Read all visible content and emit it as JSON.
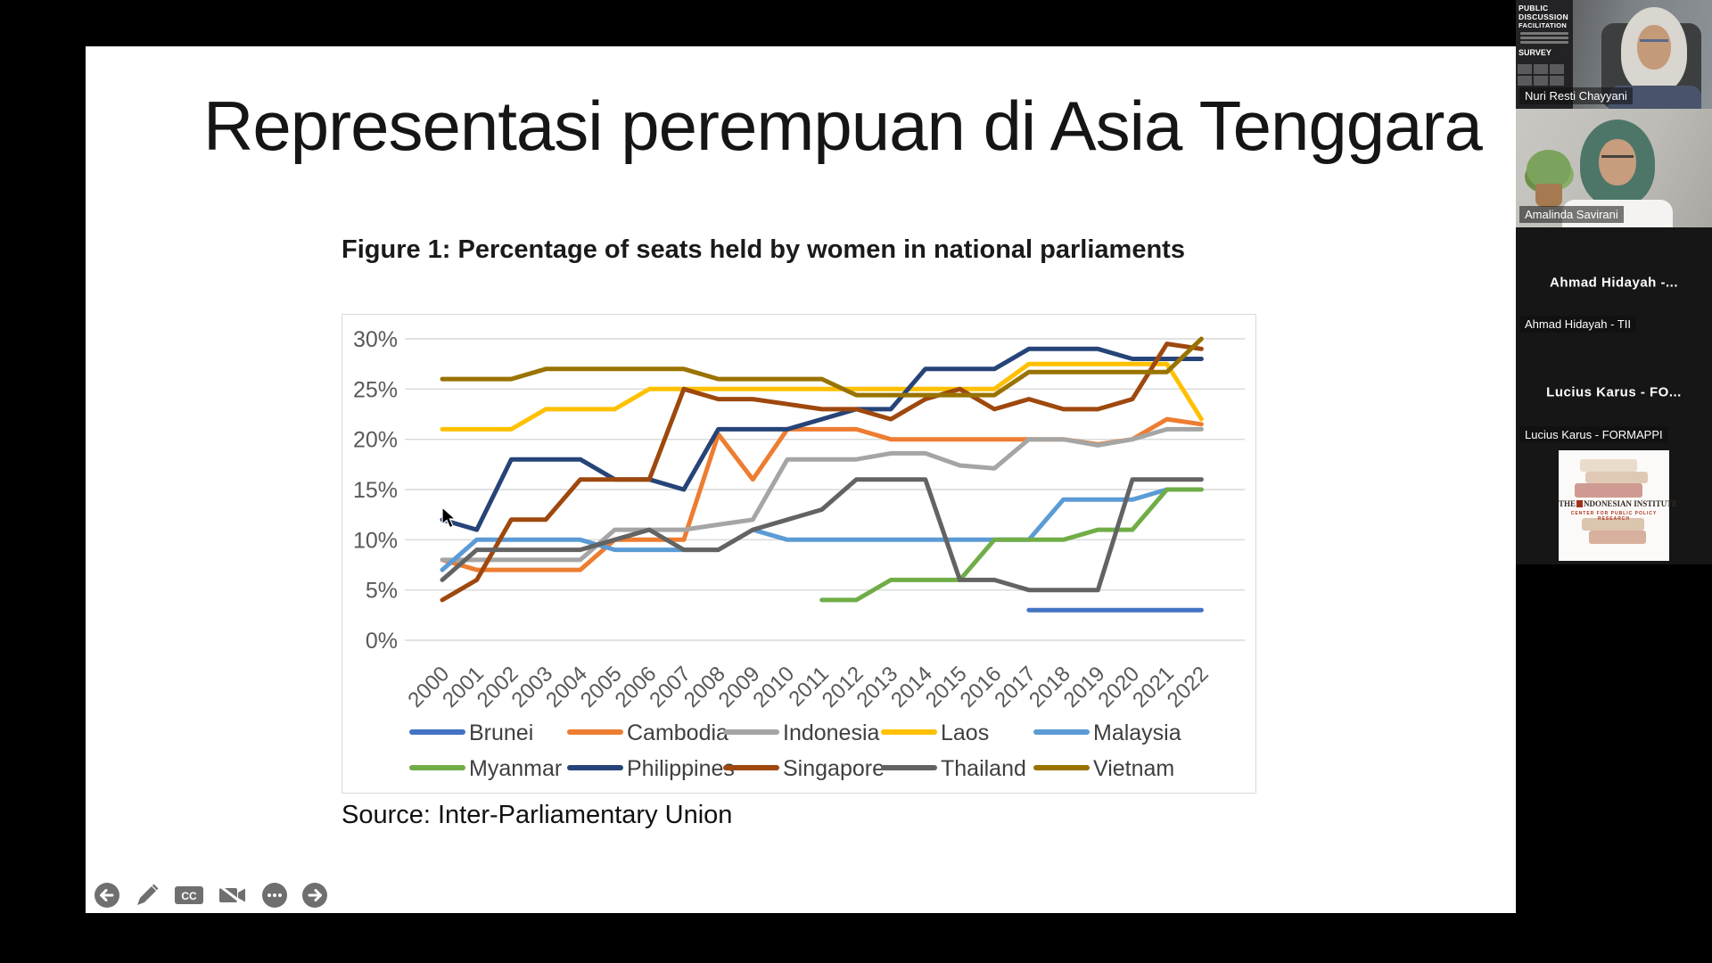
{
  "slide": {
    "title": "Representasi perempuan di Asia Tenggara",
    "source": "Source: Inter-Parliamentary Union"
  },
  "chart_data": {
    "type": "line",
    "title": "Figure 1: Percentage of seats held by women in national parliaments",
    "x": [
      2000,
      2001,
      2002,
      2003,
      2004,
      2005,
      2006,
      2007,
      2008,
      2009,
      2010,
      2011,
      2012,
      2013,
      2014,
      2015,
      2016,
      2017,
      2018,
      2019,
      2020,
      2021,
      2022
    ],
    "ylim": [
      0,
      30
    ],
    "ytick_step": 5,
    "ytick_suffix": "%",
    "grid": "horizontal",
    "legend_position": "bottom",
    "series": [
      {
        "name": "Brunei",
        "color": "#4472C4",
        "values": [
          null,
          null,
          null,
          null,
          null,
          null,
          null,
          null,
          null,
          null,
          null,
          null,
          null,
          null,
          null,
          null,
          null,
          3,
          3,
          3,
          3,
          3,
          3
        ]
      },
      {
        "name": "Cambodia",
        "color": "#ED7D31",
        "values": [
          8,
          7,
          7,
          7,
          7,
          10,
          10,
          10,
          20.5,
          16,
          21,
          21,
          21,
          20,
          20,
          20,
          20,
          20,
          20,
          19.5,
          20,
          22,
          21.5
        ]
      },
      {
        "name": "Indonesia",
        "color": "#A5A5A5",
        "values": [
          8,
          8,
          8,
          8,
          8,
          11,
          11,
          11,
          11.5,
          12,
          18,
          18,
          18,
          18.6,
          18.6,
          17.4,
          17.1,
          20,
          20,
          19.4,
          20,
          21,
          21
        ]
      },
      {
        "name": "Laos",
        "color": "#FFC000",
        "values": [
          21,
          21,
          21,
          23,
          23,
          23,
          25,
          25,
          25,
          25,
          25,
          25,
          25,
          25,
          25,
          25,
          25,
          27.5,
          27.5,
          27.5,
          27.5,
          27.5,
          22
        ]
      },
      {
        "name": "Malaysia",
        "color": "#5B9BD5",
        "values": [
          7,
          10,
          10,
          10,
          10,
          9,
          9,
          9,
          9,
          11,
          10,
          10,
          10,
          10,
          10,
          10,
          10,
          10,
          14,
          14,
          14,
          15,
          15
        ]
      },
      {
        "name": "Myanmar",
        "color": "#70AD47",
        "values": [
          null,
          null,
          null,
          null,
          null,
          null,
          null,
          null,
          null,
          null,
          null,
          4,
          4,
          6,
          6,
          6,
          10,
          10,
          10,
          11,
          11,
          15,
          15
        ]
      },
      {
        "name": "Philippines",
        "color": "#264478",
        "values": [
          12,
          11,
          18,
          18,
          18,
          16,
          16,
          15,
          21,
          21,
          21,
          22,
          23,
          23,
          27,
          27,
          27,
          29,
          29,
          29,
          28,
          28,
          28
        ]
      },
      {
        "name": "Singapore",
        "color": "#9E480E",
        "values": [
          4,
          6,
          12,
          12,
          16,
          16,
          16,
          25,
          24,
          24,
          23.5,
          23,
          23,
          22,
          24,
          25,
          23,
          24,
          23,
          23,
          24,
          29.5,
          29
        ]
      },
      {
        "name": "Thailand",
        "color": "#636363",
        "values": [
          6,
          9,
          9,
          9,
          9,
          10,
          11,
          9,
          9,
          11,
          12,
          13,
          16,
          16,
          16,
          6,
          6,
          5,
          5,
          5,
          16,
          16,
          16
        ]
      },
      {
        "name": "Vietnam",
        "color": "#997300",
        "values": [
          26,
          26,
          26,
          27,
          27,
          27,
          27,
          27,
          26,
          26,
          26,
          26,
          24.4,
          24.4,
          24.4,
          24.4,
          24.4,
          26.7,
          26.7,
          26.7,
          26.7,
          26.7,
          30
        ]
      }
    ]
  },
  "toolbar": {
    "icons": [
      "back-arrow",
      "pen",
      "closed-captions",
      "camera-off",
      "more-options",
      "forward-arrow"
    ],
    "cc_label": "CC"
  },
  "poster_lines": [
    "PUBLIC",
    "DISCUSSION",
    "FACILITATION",
    "SURVEY"
  ],
  "participants": [
    {
      "name_label": "Nuri Resti Chayyani",
      "type": "video"
    },
    {
      "name_label": "Amalinda Savirani",
      "type": "video"
    },
    {
      "display_name": "Ahmad Hidayah -...",
      "name_label": "Ahmad Hidayah - TII",
      "type": "name"
    },
    {
      "display_name": "Lucius Karus - FO...",
      "name_label": "Lucius Karus - FORMAPPI",
      "type": "name"
    },
    {
      "type": "logo",
      "logo_title_pre": "THE",
      "logo_title_main": "NDONESIAN INSTITUTE",
      "logo_subtitle": "CENTER FOR PUBLIC POLICY RESEARCH"
    }
  ]
}
